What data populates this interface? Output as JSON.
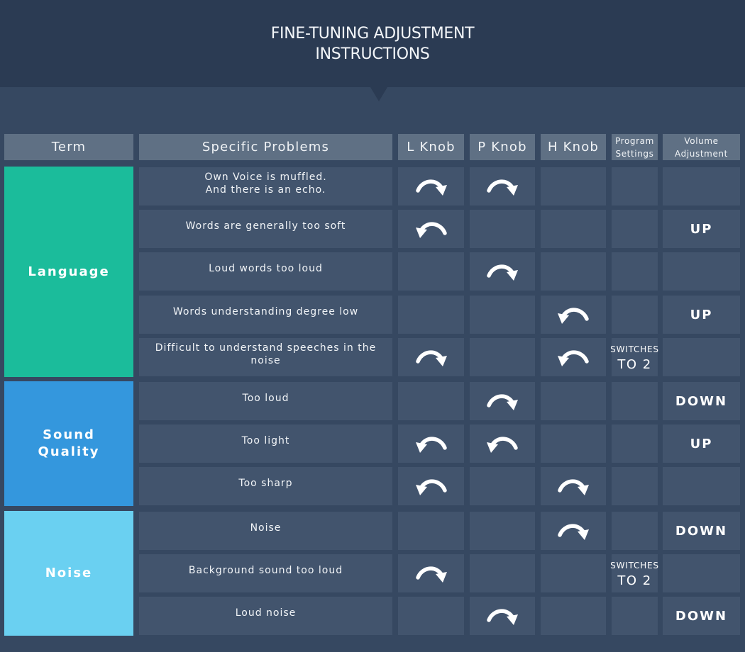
{
  "title": [
    "FINE-TUNING ADJUSTMENT",
    "INSTRUCTIONS"
  ],
  "columns": {
    "term": "Term",
    "problems": "Specific Problems",
    "l_knob": "L Knob",
    "p_knob": "P Knob",
    "h_knob": "H Knob",
    "program": [
      "Program",
      "Settings"
    ],
    "volume": [
      "Volume",
      "Adjustment"
    ]
  },
  "groups": [
    {
      "label": [
        "Language"
      ],
      "color": "#1bbc9b"
    },
    {
      "label": [
        "Sound",
        "Quality"
      ],
      "color": "#3497dd"
    },
    {
      "label": [
        "Noise"
      ],
      "color": "#6ad0f1"
    }
  ],
  "program_setting": [
    "SWITCHES",
    "TO 2"
  ],
  "rows": [
    {
      "problem": [
        "Own Voice is muffled.",
        "And there is an echo."
      ],
      "l": "clockwise",
      "p": "clockwise",
      "h": "",
      "program": false,
      "volume": ""
    },
    {
      "problem": [
        "Words are generally too soft"
      ],
      "l": "counterclockwise",
      "p": "",
      "h": "",
      "program": false,
      "volume": "UP"
    },
    {
      "problem": [
        "Loud words too loud"
      ],
      "l": "",
      "p": "clockwise",
      "h": "",
      "program": false,
      "volume": ""
    },
    {
      "problem": [
        "Words understanding degree low"
      ],
      "l": "",
      "p": "",
      "h": "counterclockwise",
      "program": false,
      "volume": "UP"
    },
    {
      "problem": [
        "Difficult to understand speeches in the noise"
      ],
      "l": "clockwise",
      "p": "",
      "h": "counterclockwise",
      "program": true,
      "volume": ""
    },
    {
      "problem": [
        "Too loud"
      ],
      "l": "",
      "p": "clockwise",
      "h": "",
      "program": false,
      "volume": "DOWN"
    },
    {
      "problem": [
        "Too light"
      ],
      "l": "counterclockwise",
      "p": "counterclockwise",
      "h": "",
      "program": false,
      "volume": "UP"
    },
    {
      "problem": [
        "Too sharp"
      ],
      "l": "counterclockwise",
      "p": "",
      "h": "clockwise",
      "program": false,
      "volume": ""
    },
    {
      "problem": [
        "Noise"
      ],
      "l": "",
      "p": "",
      "h": "clockwise",
      "program": false,
      "volume": "DOWN"
    },
    {
      "problem": [
        "Background sound too loud"
      ],
      "l": "clockwise",
      "p": "",
      "h": "",
      "program": true,
      "volume": ""
    },
    {
      "problem": [
        "Loud noise"
      ],
      "l": "",
      "p": "clockwise",
      "h": "",
      "program": false,
      "volume": "DOWN"
    }
  ]
}
